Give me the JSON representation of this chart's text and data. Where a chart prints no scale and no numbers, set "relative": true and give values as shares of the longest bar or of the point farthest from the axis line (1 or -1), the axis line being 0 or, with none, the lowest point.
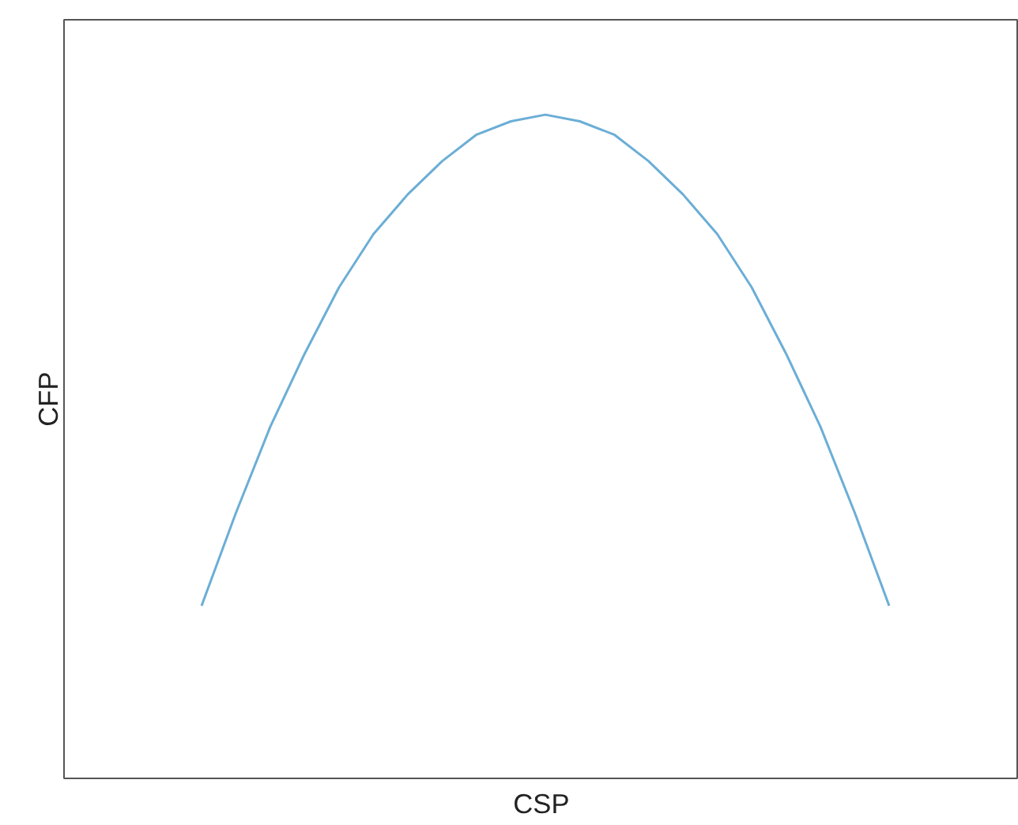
{
  "chart_data": {
    "type": "line",
    "relative": true,
    "xlabel": "CSP",
    "ylabel": "CFP",
    "categories": [
      null,
      null,
      null,
      null,
      null,
      null,
      null,
      null,
      null,
      null,
      null,
      null,
      null,
      null,
      null,
      null,
      null,
      null,
      null,
      null,
      null
    ],
    "series": [
      {
        "color": "#6baed6",
        "values": [
          0.26,
          0.4,
          0.53,
          0.64,
          0.74,
          0.82,
          0.88,
          0.93,
          0.97,
          0.99,
          1.0,
          0.99,
          0.97,
          0.93,
          0.88,
          0.82,
          0.74,
          0.64,
          0.53,
          0.4,
          0.26
        ]
      }
    ],
    "line_style": "solid"
  }
}
